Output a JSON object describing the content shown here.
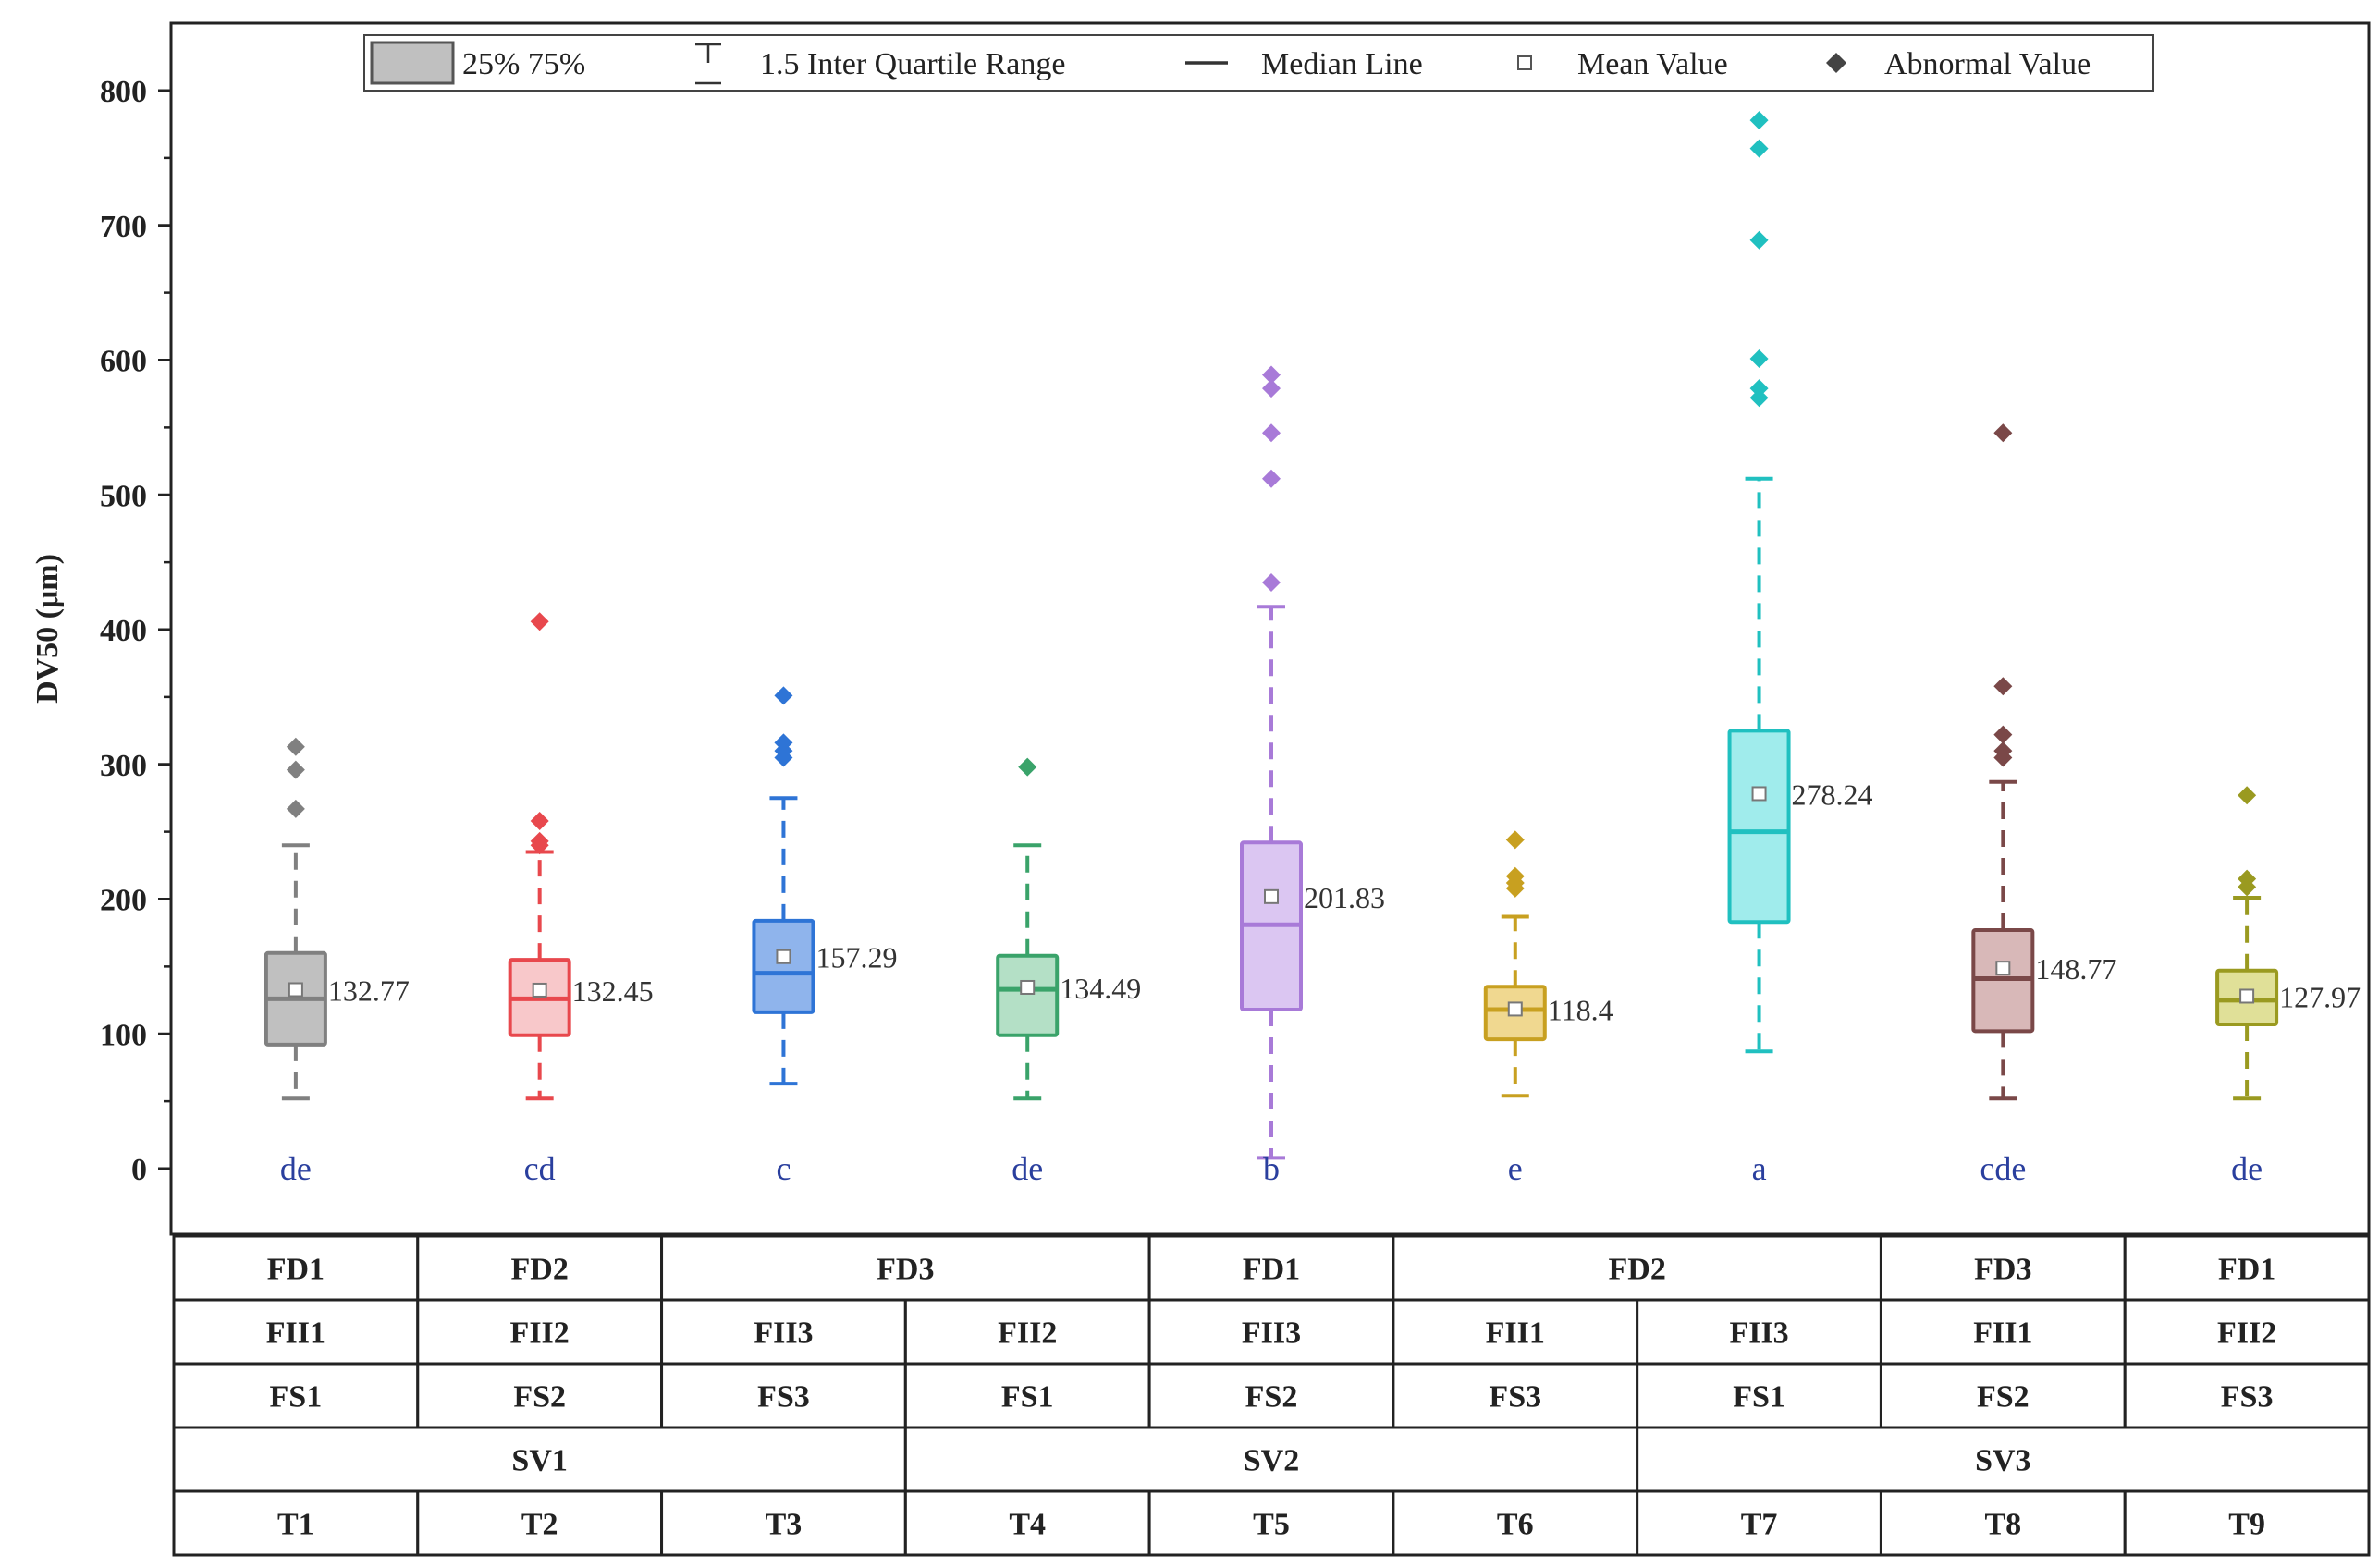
{
  "chart_data": {
    "type": "box",
    "ylabel": "DV50 (μm)",
    "ylim": [
      -50,
      850
    ],
    "yticks": [
      0,
      100,
      200,
      300,
      400,
      500,
      600,
      700,
      800
    ],
    "legend": {
      "placement": "top",
      "items": [
        "25%  75%",
        "1.5 Inter  Quartile Range",
        "Median Line",
        "Mean Value",
        "Abnormal Value"
      ]
    },
    "boxes": [
      {
        "name": "T1",
        "color": "#808080",
        "fill": "#c0c0c0",
        "q1": 92,
        "median": 126,
        "q3": 160,
        "whisker_low": 52,
        "whisker_high": 240,
        "mean": 132.77,
        "mean_label": "132.77",
        "outliers": [
          267,
          296,
          313
        ],
        "letter": "de"
      },
      {
        "name": "T2",
        "color": "#e8484d",
        "fill": "#f8c8ca",
        "q1": 99,
        "median": 126,
        "q3": 155,
        "whisker_low": 52,
        "whisker_high": 235,
        "mean": 132.45,
        "mean_label": "132.45",
        "outliers": [
          240,
          243,
          258,
          406
        ],
        "letter": "cd"
      },
      {
        "name": "T3",
        "color": "#2e74d6",
        "fill": "#8fb4ec",
        "q1": 116,
        "median": 145,
        "q3": 184,
        "whisker_low": 63,
        "whisker_high": 275,
        "mean": 157.29,
        "mean_label": "157.29",
        "outliers": [
          305,
          310,
          316,
          351
        ],
        "letter": "c"
      },
      {
        "name": "T4",
        "color": "#3aa36a",
        "fill": "#b4e0c6",
        "q1": 99,
        "median": 133,
        "q3": 158,
        "whisker_low": 52,
        "whisker_high": 240,
        "mean": 134.49,
        "mean_label": "134.49",
        "outliers": [
          298
        ],
        "letter": "de"
      },
      {
        "name": "T5",
        "color": "#a87ad8",
        "fill": "#dbc6f2",
        "q1": 118,
        "median": 181,
        "q3": 242,
        "whisker_low": 8,
        "whisker_high": 417,
        "mean": 201.83,
        "mean_label": "201.83",
        "outliers": [
          435,
          512,
          546,
          579,
          589
        ],
        "letter": "b"
      },
      {
        "name": "T6",
        "color": "#c8a020",
        "fill": "#f0d890",
        "q1": 96,
        "median": 118,
        "q3": 135,
        "whisker_low": 54,
        "whisker_high": 187,
        "mean": 118.4,
        "mean_label": "118.4",
        "outliers": [
          208,
          212,
          217,
          244
        ],
        "letter": "e"
      },
      {
        "name": "T7",
        "color": "#20c0c0",
        "fill": "#a0ecec",
        "q1": 183,
        "median": 250,
        "q3": 325,
        "whisker_low": 87,
        "whisker_high": 512,
        "mean": 278.24,
        "mean_label": "278.24",
        "outliers": [
          572,
          579,
          601,
          689,
          757,
          778
        ],
        "letter": "a"
      },
      {
        "name": "T8",
        "color": "#7a4848",
        "fill": "#d8b8b8",
        "q1": 102,
        "median": 141,
        "q3": 177,
        "whisker_low": 52,
        "whisker_high": 287,
        "mean": 148.77,
        "mean_label": "148.77",
        "outliers": [
          305,
          310,
          322,
          358,
          546
        ],
        "letter": "cde"
      },
      {
        "name": "T9",
        "color": "#9a9a20",
        "fill": "#e0e098",
        "q1": 107,
        "median": 125,
        "q3": 147,
        "whisker_low": 52,
        "whisker_high": 201,
        "mean": 127.97,
        "mean_label": "127.97",
        "outliers": [
          209,
          215,
          277
        ],
        "letter": "de"
      }
    ],
    "table": {
      "FD": [
        {
          "label": "FD1",
          "span": 1
        },
        {
          "label": "FD2",
          "span": 1
        },
        {
          "label": "FD3",
          "span": 2
        },
        {
          "label": "FD1",
          "span": 1
        },
        {
          "label": "FD2",
          "span": 2
        },
        {
          "label": "FD3",
          "span": 1
        },
        {
          "label": "FD1",
          "span": 1
        }
      ],
      "FII": [
        {
          "label": "FII1",
          "span": 1
        },
        {
          "label": "FII2",
          "span": 1
        },
        {
          "label": "FII3",
          "span": 1
        },
        {
          "label": "FII2",
          "span": 1
        },
        {
          "label": "FII3",
          "span": 1
        },
        {
          "label": "FII1",
          "span": 1
        },
        {
          "label": "FII3",
          "span": 1
        },
        {
          "label": "FII1",
          "span": 1
        },
        {
          "label": "FII2",
          "span": 1
        }
      ],
      "FS": [
        {
          "label": "FS1",
          "span": 1
        },
        {
          "label": "FS2",
          "span": 1
        },
        {
          "label": "FS3",
          "span": 1
        },
        {
          "label": "FS1",
          "span": 1
        },
        {
          "label": "FS2",
          "span": 1
        },
        {
          "label": "FS3",
          "span": 1
        },
        {
          "label": "FS1",
          "span": 1
        },
        {
          "label": "FS2",
          "span": 1
        },
        {
          "label": "FS3",
          "span": 1
        }
      ],
      "SV": [
        {
          "label": "SV1",
          "span": 3
        },
        {
          "label": "SV2",
          "span": 3
        },
        {
          "label": "SV3",
          "span": 3
        }
      ],
      "T": [
        {
          "label": "T1",
          "span": 1
        },
        {
          "label": "T2",
          "span": 1
        },
        {
          "label": "T3",
          "span": 1
        },
        {
          "label": "T4",
          "span": 1
        },
        {
          "label": "T5",
          "span": 1
        },
        {
          "label": "T6",
          "span": 1
        },
        {
          "label": "T7",
          "span": 1
        },
        {
          "label": "T8",
          "span": 1
        },
        {
          "label": "T9",
          "span": 1
        }
      ]
    }
  }
}
